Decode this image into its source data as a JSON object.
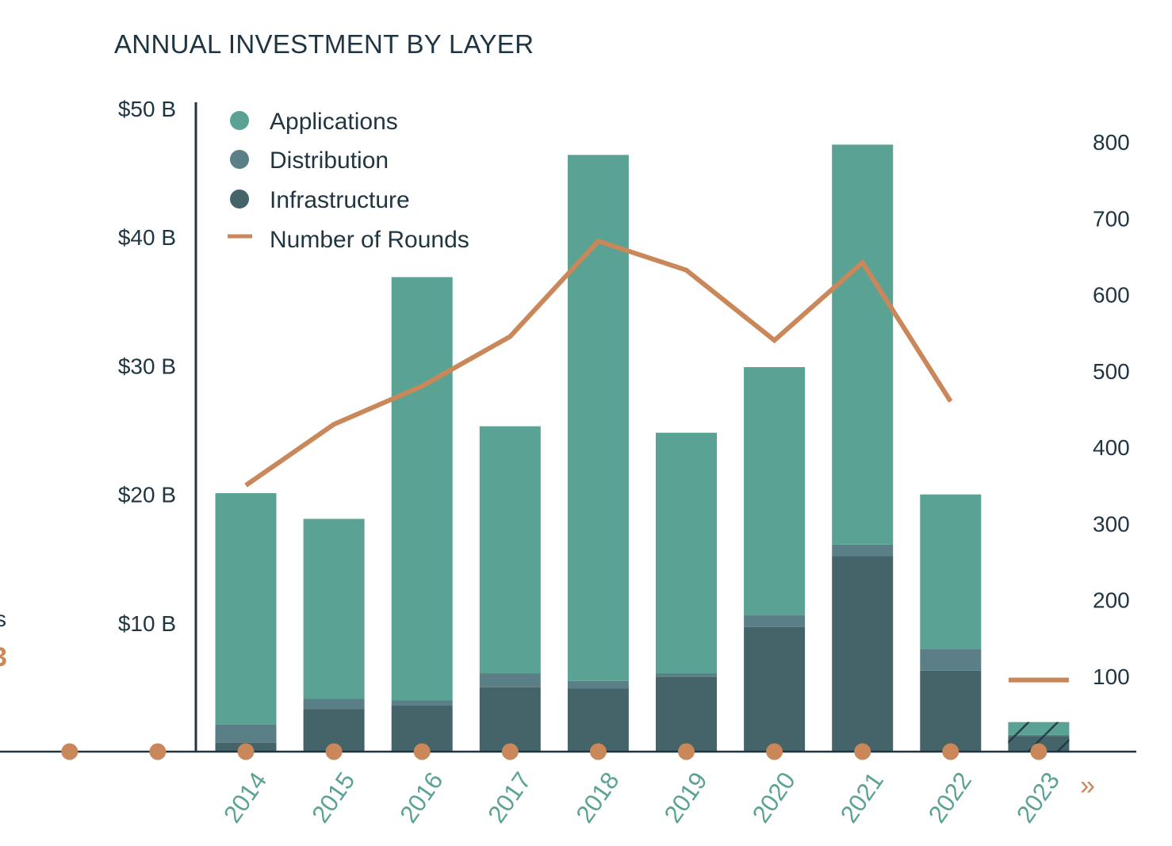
{
  "chart_data": {
    "type": "bar",
    "title": "ANNUAL INVESTMENT BY LAYER",
    "categories": [
      "2014",
      "2015",
      "2016",
      "2017",
      "2018",
      "2019",
      "2020",
      "2021",
      "2022",
      "2023"
    ],
    "series": [
      {
        "name": "Infrastructure",
        "values": [
          0.7,
          3.3,
          3.6,
          5.0,
          4.9,
          5.8,
          9.7,
          15.2,
          6.3,
          1.2
        ]
      },
      {
        "name": "Distribution",
        "values": [
          1.4,
          0.8,
          0.4,
          1.1,
          0.6,
          0.3,
          0.9,
          0.9,
          1.7,
          0.1
        ]
      },
      {
        "name": "Applications",
        "values": [
          18.0,
          14.0,
          32.9,
          19.2,
          40.9,
          18.7,
          19.3,
          31.1,
          12.0,
          1.0
        ]
      }
    ],
    "line": {
      "name": "Number of Rounds",
      "values": [
        350,
        430,
        480,
        545,
        670,
        632,
        540,
        642,
        460,
        95
      ]
    },
    "ylabel_left": "",
    "ylim_left": [
      0,
      50
    ],
    "left_ticks": [
      "$10 B",
      "$20 B",
      "$30 B",
      "$40 B",
      "$50 B"
    ],
    "ylim_right": [
      0,
      800
    ],
    "right_ticks": [
      "100",
      "200",
      "300",
      "400",
      "500",
      "600",
      "700",
      "800"
    ],
    "legend": [
      "Applications",
      "Distribution",
      "Infrastructure",
      "Number of Rounds"
    ],
    "legend_position": "top-left",
    "colors": {
      "Applications": "#5aa294",
      "Distribution": "#5b7f86",
      "Infrastructure": "#456469",
      "Number of Rounds": "#c9875a",
      "axis": "#1f3541",
      "xtick": "#5aa294",
      "dot": "#c9875a"
    },
    "partial_year": "2023",
    "more_label": "»",
    "edge_fragments": {
      "top": "s",
      "bottom": "3"
    }
  }
}
